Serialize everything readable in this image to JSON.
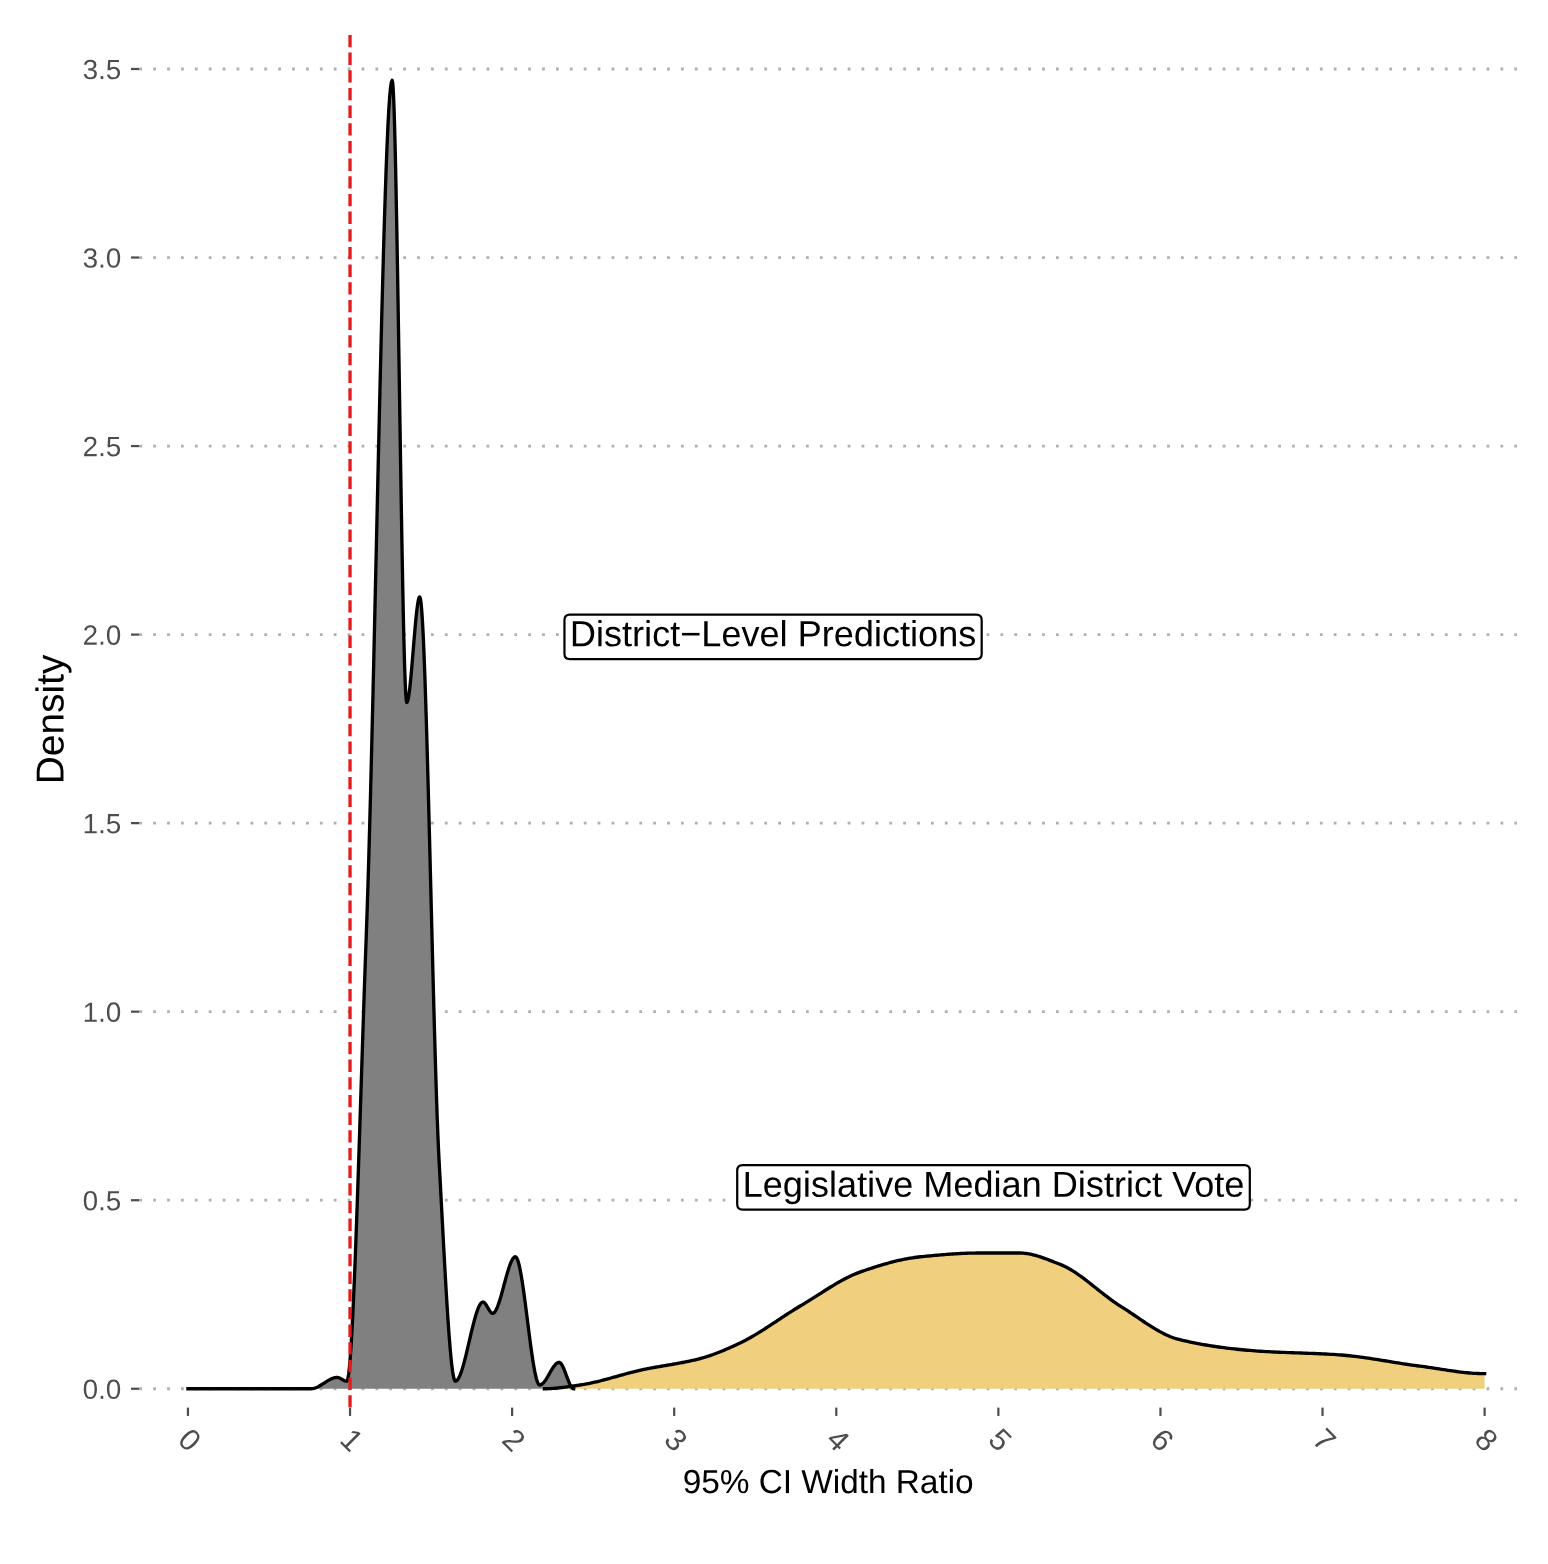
{
  "chart_data": {
    "type": "area",
    "xlabel": "95% CI Width Ratio",
    "ylabel": "Density",
    "xlim": [
      -0.3,
      8.2
    ],
    "ylim": [
      -0.05,
      3.6
    ],
    "xticks": [
      0,
      1,
      2,
      3,
      4,
      5,
      6,
      7,
      8
    ],
    "yticks": [
      {
        "value": 0,
        "label": "0.0"
      },
      {
        "value": 0.5,
        "label": "0.5"
      },
      {
        "value": 1,
        "label": "1.0"
      },
      {
        "value": 1.5,
        "label": "1.5"
      },
      {
        "value": 2,
        "label": "2.0"
      },
      {
        "value": 2.5,
        "label": "2.5"
      },
      {
        "value": 3,
        "label": "3.0"
      },
      {
        "value": 3.5,
        "label": "3.5"
      }
    ],
    "grid": "y",
    "line_style": "solid",
    "series": [
      {
        "color": "#808080",
        "x": [
          0,
          0.76,
          0.92,
          0.98,
          1.1,
          1.26,
          1.35,
          1.43,
          1.55,
          1.65,
          1.82,
          1.88,
          2.02,
          2.17,
          2.29,
          2.38
        ],
        "values": [
          0,
          0,
          0.03,
          0.02,
          1.2,
          3.47,
          1.82,
          2.1,
          0.6,
          0.02,
          0.23,
          0.2,
          0.35,
          0.01,
          0.07,
          0
        ]
      },
      {
        "color": "#f0cf7f",
        "x": [
          2.2,
          2.42,
          2.8,
          3.16,
          3.4,
          3.78,
          4.15,
          4.52,
          4.89,
          5.13,
          5.38,
          5.75,
          6.12,
          6.6,
          7.1,
          7.6,
          8
        ],
        "values": [
          0,
          0.01,
          0.05,
          0.08,
          0.12,
          0.22,
          0.31,
          0.35,
          0.36,
          0.36,
          0.33,
          0.22,
          0.13,
          0.1,
          0.09,
          0.06,
          0.04
        ]
      }
    ],
    "ref_lines": [
      {
        "axis": "x",
        "value": 1,
        "color": "#e41a1c",
        "line_style": "dashed"
      }
    ],
    "annotations": [
      "District−Level Predictions",
      "Legislative Median District Vote"
    ]
  }
}
